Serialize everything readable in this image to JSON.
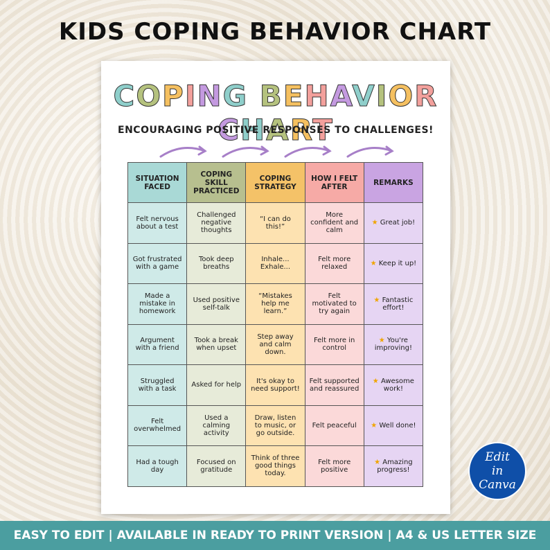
{
  "header": {
    "title": "KIDS COPING BEHAVIOR CHART"
  },
  "paper": {
    "title": "COPING BEHAVIOR CHART",
    "subtitle": "ENCOURAGING POSITIVE RESPONSES TO CHALLENGES!"
  },
  "table": {
    "headers": [
      "SITUATION FACED",
      "COPING SKILL PRACTICED",
      "COPING STRATEGY",
      "HOW I FELT AFTER",
      "REMARKS"
    ],
    "rows": [
      [
        "Felt nervous about a test",
        "Challenged negative thoughts",
        "“I can do this!”",
        "More confident and calm",
        "★ Great job!"
      ],
      [
        "Got frustrated with a game",
        "Took deep breaths",
        "Inhale... Exhale...",
        "Felt more relaxed",
        "★ Keep it up!"
      ],
      [
        "Made a mistake in homework",
        "Used positive self-talk",
        "“Mistakes help me learn.”",
        "Felt motivated to try again",
        "★ Fantastic effort!"
      ],
      [
        "Argument with a friend",
        "Took a break when upset",
        "Step away and calm down.",
        "Felt more in control",
        "★ You're improving!"
      ],
      [
        "Struggled with a task",
        "Asked for help",
        "It's okay to need support!",
        "Felt supported and reassured",
        "★ Awesome work!"
      ],
      [
        "Felt overwhelmed",
        "Used a calming activity",
        "Draw, listen to music, or go outside.",
        "Felt peaceful",
        "★ Well done!"
      ],
      [
        "Had a tough day",
        "Focused on gratitude",
        "Think of three good things today.",
        "Felt more positive",
        "★ Amazing progress!"
      ]
    ]
  },
  "badge": {
    "text": "Edit in Canva"
  },
  "footer": {
    "banner": "EASY TO EDIT | AVAILABLE IN READY TO PRINT VERSION | A4 & US LETTER SIZE"
  }
}
